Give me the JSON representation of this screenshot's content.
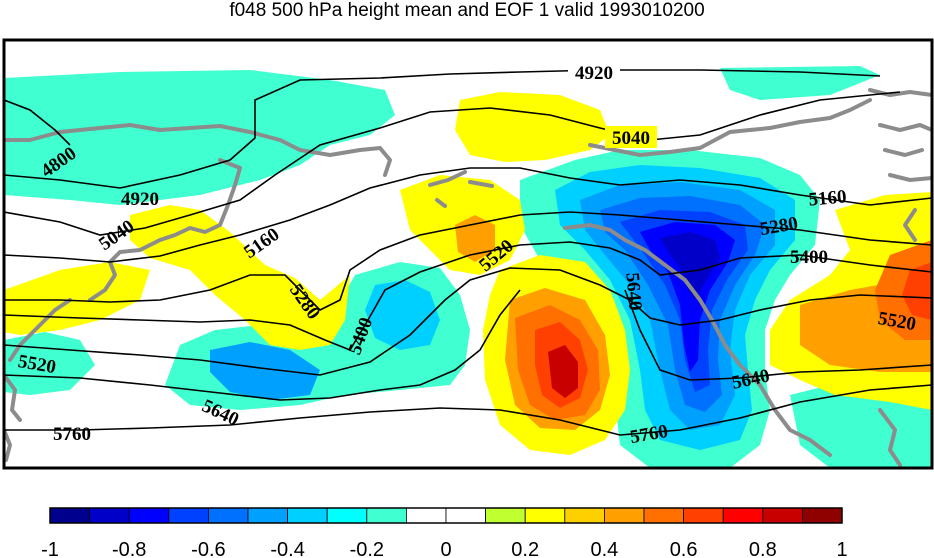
{
  "title": "f048 500 hPa height mean and EOF 1 valid 1993010200",
  "contour_labels": [
    "4920",
    "5040",
    "4800",
    "4920",
    "5040",
    "5160",
    "5160",
    "5280",
    "5520",
    "5280",
    "5400",
    "5400",
    "5520",
    "5520",
    "5640",
    "5640",
    "5640",
    "5760",
    "5760"
  ],
  "colorbar": {
    "colors": [
      "#00008f",
      "#0000c8",
      "#0000ff",
      "#0040ff",
      "#0070ff",
      "#00a0ff",
      "#00d0ff",
      "#00ffff",
      "#40ffd0",
      "#ffffff",
      "#ffffff",
      "#c0ff30",
      "#ffff00",
      "#ffd000",
      "#ffa000",
      "#ff7000",
      "#ff4000",
      "#ff0000",
      "#c80000",
      "#8f0000"
    ],
    "tick_labels": [
      "-1",
      "-0.8",
      "-0.6",
      "-0.4",
      "-0.2",
      "0",
      "0.2",
      "0.4",
      "0.6",
      "0.8",
      "1"
    ]
  }
}
